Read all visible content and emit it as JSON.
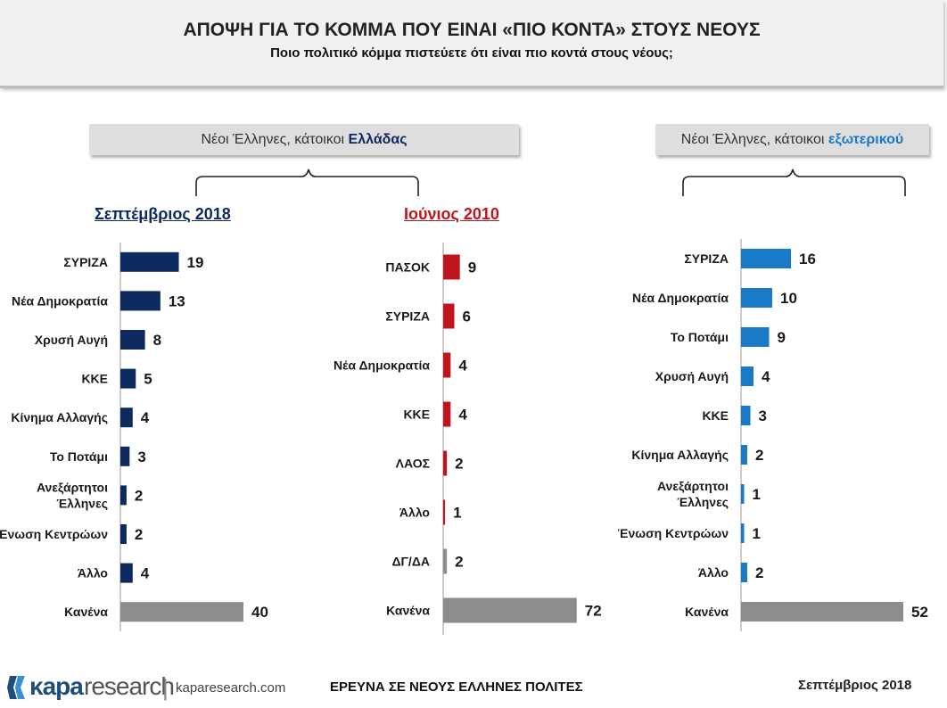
{
  "header": {
    "title": "ΑΠΟΨΗ ΓΙΑ ΤΟ ΚΟΜΜΑ ΠΟΥ ΕΙΝΑΙ «ΠΙΟ ΚΟΝΤΑ» ΣΤΟΥΣ ΝΕΟΥΣ",
    "subtitle": "Ποιο πολιτικό κόμμα πιστεύετε ότι είναι πιο κοντά στους νέους;"
  },
  "groups": {
    "greece": {
      "prefix": "Νέοι Έλληνες, κάτοικοι ",
      "highlight": "Ελλάδας"
    },
    "abroad": {
      "prefix": "Νέοι Έλληνες, κάτοικοι ",
      "highlight": "εξωτερικού"
    }
  },
  "colors": {
    "navy": "#0d2a5e",
    "red": "#c0151c",
    "blue": "#1a7ac7",
    "gray": "#8c8c8c"
  },
  "chart_data": [
    {
      "type": "bar",
      "orientation": "horizontal",
      "title": "Σεπτέμβριος 2018",
      "categories": [
        "ΣΥΡΙΖΑ",
        "Νέα Δημοκρατία",
        "Χρυσή Αυγή",
        "ΚΚΕ",
        "Κίνημα Αλλαγής",
        "Το Ποτάμι",
        "Ανεξάρτητοι Έλληνες",
        "Ένωση Κεντρώων",
        "Άλλο",
        "Κανένα"
      ],
      "values": [
        19,
        13,
        8,
        5,
        4,
        3,
        2,
        2,
        4,
        40
      ],
      "bar_color": "#0d2a5e",
      "last_bar_color": "#8c8c8c"
    },
    {
      "type": "bar",
      "orientation": "horizontal",
      "title": "Ιούνιος 2010",
      "categories": [
        "ΠΑΣΟΚ",
        "ΣΥΡΙΖΑ",
        "Νέα Δημοκρατία",
        "ΚΚΕ",
        "ΛΑΟΣ",
        "Άλλο",
        "ΔΓ/ΔΑ",
        "Κανένα"
      ],
      "values": [
        9,
        6,
        4,
        4,
        2,
        1,
        2,
        72
      ],
      "bar_color": "#c0151c",
      "last_bar_color": "#8c8c8c",
      "gray_categories": [
        "ΔΓ/ΔΑ",
        "Κανένα"
      ]
    },
    {
      "type": "bar",
      "orientation": "horizontal",
      "title": "",
      "categories": [
        "ΣΥΡΙΖΑ",
        "Νέα Δημοκρατία",
        "Το Ποτάμι",
        "Χρυσή Αυγή",
        "ΚΚΕ",
        "Κίνημα Αλλαγής",
        "Ανεξάρτητοι Έλληνες",
        "Ένωση Κεντρώων",
        "Άλλο",
        "Κανένα"
      ],
      "values": [
        16,
        10,
        9,
        4,
        3,
        2,
        1,
        1,
        2,
        52
      ],
      "bar_color": "#1a7ac7",
      "last_bar_color": "#8c8c8c"
    }
  ],
  "footer": {
    "logo_kapa": "κapa",
    "logo_research": "research",
    "logo_url": "kaparesearch.com",
    "survey_title": "ΕΡΕΥΝΑ ΣΕ ΝΕΟΥΣ ΕΛΛΗΝΕΣ ΠΟΛΙΤΕΣ",
    "date": "Σεπτέμβριος 2018"
  }
}
